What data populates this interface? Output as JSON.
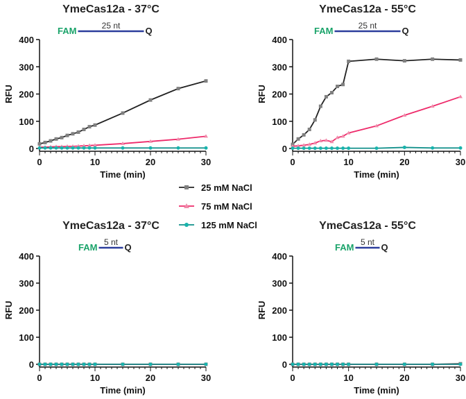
{
  "colors": {
    "s25": "#222222",
    "m25": "#808080",
    "s75": "#ee2a6a",
    "m75": "#f08aaa",
    "s125": "#0f8f8a",
    "m125": "#17b3ac",
    "fam": "#1aa36a",
    "line": "#2b3d9c"
  },
  "legend": [
    "25 mM NaCl",
    "75 mM NaCl",
    "125 mM NaCl"
  ],
  "chart_data": [
    {
      "type": "line",
      "title": "YmeCas12a - 37°C",
      "reporter": {
        "fam": "FAM",
        "length": "25 nt",
        "q": "Q"
      },
      "xlabel": "Time (min)",
      "ylabel": "RFU",
      "xlim": [
        0,
        30
      ],
      "ylim": [
        0,
        400
      ],
      "xticks": [
        "0",
        "10",
        "20",
        "30"
      ],
      "yticks": [
        "0",
        "100",
        "200",
        "300",
        "400"
      ],
      "x": [
        0,
        1,
        2,
        3,
        4,
        5,
        6,
        7,
        8,
        9,
        10,
        15,
        20,
        25,
        30
      ],
      "series": [
        {
          "name": "25 mM NaCl",
          "values": [
            17,
            22,
            28,
            35,
            40,
            48,
            54,
            60,
            70,
            80,
            86,
            130,
            178,
            220,
            248
          ]
        },
        {
          "name": "75 mM NaCl",
          "values": [
            5,
            5,
            6,
            7,
            7,
            8,
            8,
            9,
            10,
            11,
            12,
            18,
            26,
            34,
            45
          ]
        },
        {
          "name": "125 mM NaCl",
          "values": [
            2,
            2,
            2,
            2,
            2,
            2,
            2,
            2,
            2,
            2,
            2,
            2,
            2,
            2,
            2
          ]
        }
      ]
    },
    {
      "type": "line",
      "title": "YmeCas12a - 55°C",
      "reporter": {
        "fam": "FAM",
        "length": "25 nt",
        "q": "Q"
      },
      "xlabel": "Time (min)",
      "ylabel": "RFU",
      "xlim": [
        0,
        30
      ],
      "ylim": [
        0,
        400
      ],
      "xticks": [
        "0",
        "10",
        "20",
        "30"
      ],
      "yticks": [
        "0",
        "100",
        "200",
        "300",
        "400"
      ],
      "x": [
        0,
        1,
        2,
        3,
        4,
        5,
        6,
        7,
        8,
        9,
        10,
        15,
        20,
        25,
        30
      ],
      "series": [
        {
          "name": "25 mM NaCl",
          "values": [
            15,
            35,
            50,
            70,
            105,
            155,
            190,
            205,
            228,
            235,
            320,
            328,
            322,
            328,
            325
          ]
        },
        {
          "name": "75 mM NaCl",
          "values": [
            8,
            10,
            12,
            15,
            20,
            28,
            30,
            25,
            40,
            45,
            57,
            83,
            122,
            155,
            190
          ]
        },
        {
          "name": "125 mM NaCl",
          "values": [
            1,
            1,
            1,
            1,
            1,
            1,
            1,
            1,
            1,
            1,
            1,
            1,
            4,
            2,
            2
          ]
        }
      ]
    },
    {
      "type": "line",
      "title": "YmeCas12a - 37°C",
      "reporter": {
        "fam": "FAM",
        "length": "5 nt",
        "q": "Q"
      },
      "xlabel": "Time (min)",
      "ylabel": "RFU",
      "xlim": [
        0,
        30
      ],
      "ylim": [
        0,
        400
      ],
      "xticks": [
        "0",
        "10",
        "20",
        "30"
      ],
      "yticks": [
        "0",
        "100",
        "200",
        "300",
        "400"
      ],
      "x": [
        0,
        1,
        2,
        3,
        4,
        5,
        6,
        7,
        8,
        9,
        10,
        15,
        20,
        25,
        30
      ],
      "series": [
        {
          "name": "25 mM NaCl",
          "values": [
            0,
            0,
            0,
            0,
            0,
            0,
            0,
            0,
            0,
            0,
            0,
            0,
            0,
            0,
            0
          ]
        },
        {
          "name": "75 mM NaCl",
          "values": [
            0,
            0,
            0,
            0,
            0,
            0,
            0,
            0,
            0,
            0,
            0,
            0,
            0,
            0,
            0
          ]
        },
        {
          "name": "125 mM NaCl",
          "values": [
            0,
            0,
            0,
            0,
            0,
            0,
            0,
            0,
            0,
            0,
            0,
            0,
            0,
            0,
            0
          ]
        }
      ]
    },
    {
      "type": "line",
      "title": "YmeCas12a - 55°C",
      "reporter": {
        "fam": "FAM",
        "length": "5 nt",
        "q": "Q"
      },
      "xlabel": "Time (min)",
      "ylabel": "RFU",
      "xlim": [
        0,
        30
      ],
      "ylim": [
        0,
        400
      ],
      "xticks": [
        "0",
        "10",
        "20",
        "30"
      ],
      "yticks": [
        "0",
        "100",
        "200",
        "300",
        "400"
      ],
      "x": [
        0,
        1,
        2,
        3,
        4,
        5,
        6,
        7,
        8,
        9,
        10,
        15,
        20,
        25,
        30
      ],
      "series": [
        {
          "name": "25 mM NaCl",
          "values": [
            0,
            0,
            0,
            0,
            0,
            0,
            0,
            0,
            0,
            0,
            0,
            0,
            0,
            0,
            2
          ]
        },
        {
          "name": "75 mM NaCl",
          "values": [
            0,
            0,
            0,
            0,
            0,
            0,
            0,
            0,
            0,
            0,
            0,
            0,
            0,
            0,
            0
          ]
        },
        {
          "name": "125 mM NaCl",
          "values": [
            0,
            0,
            0,
            0,
            0,
            0,
            0,
            0,
            0,
            0,
            0,
            0,
            0,
            0,
            0
          ]
        }
      ]
    }
  ]
}
